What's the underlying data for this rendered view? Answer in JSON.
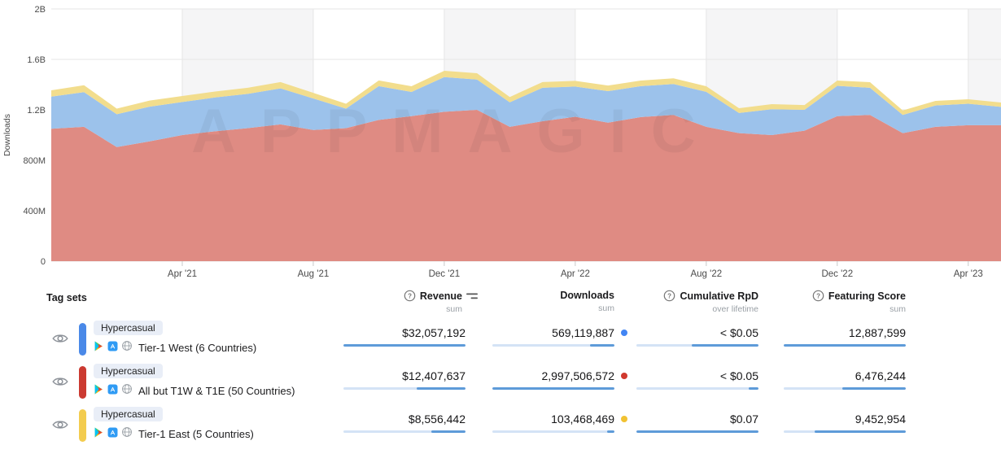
{
  "chart_data": {
    "type": "area",
    "stacked": true,
    "title": "",
    "ylabel": "Downloads",
    "watermark": "APPMAGIC",
    "ylim": [
      0,
      2000
    ],
    "units": "millions",
    "x": [
      "Dec '20",
      "Jan '21",
      "Feb '21",
      "Mar '21",
      "Apr '21",
      "May '21",
      "Jun '21",
      "Jul '21",
      "Aug '21",
      "Sep '21",
      "Oct '21",
      "Nov '21",
      "Dec '21",
      "Jan '22",
      "Feb '22",
      "Mar '22",
      "Apr '22",
      "May '22",
      "Jun '22",
      "Jul '22",
      "Aug '22",
      "Sep '22",
      "Oct '22",
      "Nov '22",
      "Dec '22",
      "Jan '23",
      "Feb '23",
      "Mar '23",
      "Apr '23",
      "May '23"
    ],
    "series": [
      {
        "name": "All but T1W & T1E (50 Countries)",
        "color": "#df8b83",
        "values": [
          1050,
          1065,
          905,
          950,
          1000,
          1030,
          1055,
          1085,
          1040,
          1055,
          1120,
          1150,
          1185,
          1200,
          1065,
          1110,
          1145,
          1098,
          1143,
          1160,
          1065,
          1015,
          1000,
          1035,
          1150,
          1160,
          1015,
          1065,
          1078,
          1078
        ]
      },
      {
        "name": "Tier-1 West (6 Countries)",
        "color": "#9cc2eb",
        "values": [
          255,
          275,
          260,
          275,
          262,
          268,
          272,
          285,
          250,
          155,
          268,
          192,
          275,
          240,
          195,
          265,
          240,
          250,
          245,
          245,
          278,
          160,
          205,
          165,
          240,
          215,
          145,
          170,
          170,
          145
        ]
      },
      {
        "name": "Tier-1 East (5 Countries)",
        "color": "#f2dd8d",
        "values": [
          50,
          55,
          45,
          48,
          48,
          47,
          48,
          50,
          45,
          38,
          45,
          45,
          50,
          50,
          42,
          45,
          45,
          45,
          44,
          45,
          44,
          38,
          40,
          38,
          42,
          44,
          35,
          36,
          36,
          35
        ]
      }
    ],
    "yticks": [
      {
        "value": 0,
        "label": "0"
      },
      {
        "value": 400,
        "label": "400M"
      },
      {
        "value": 800,
        "label": "800M"
      },
      {
        "value": 1200,
        "label": "1.2B"
      },
      {
        "value": 1600,
        "label": "1.6B"
      },
      {
        "value": 2000,
        "label": "2B"
      }
    ],
    "xticks": [
      {
        "index": 4,
        "label": "Apr '21"
      },
      {
        "index": 8,
        "label": "Aug '21"
      },
      {
        "index": 12,
        "label": "Dec '21"
      },
      {
        "index": 16,
        "label": "Apr '22"
      },
      {
        "index": 20,
        "label": "Aug '22"
      },
      {
        "index": 24,
        "label": "Dec '22"
      },
      {
        "index": 28,
        "label": "Apr '23"
      }
    ],
    "shaded_bands": [
      [
        4,
        8
      ],
      [
        12,
        16
      ],
      [
        20,
        24
      ],
      [
        28,
        29
      ]
    ],
    "grid": true,
    "band_color": "#f5f5f6",
    "grid_color": "#e6e6e6"
  },
  "icons": {
    "eye": "visibility-toggle",
    "question": "help-circle",
    "sort": "sort-order",
    "google_play": "google-play",
    "app_store": "app-store",
    "globe": "globe-worldwide"
  },
  "table": {
    "tag_sets_label": "Tag sets",
    "columns": {
      "revenue": {
        "label": "Revenue",
        "sub": "sum"
      },
      "downloads": {
        "label": "Downloads",
        "sub": "sum"
      },
      "rpd": {
        "label": "Cumulative RpD",
        "sub": "over lifetime"
      },
      "featuring": {
        "label": "Featuring Score",
        "sub": "sum"
      }
    },
    "rows": [
      {
        "tag": "Hypercasual",
        "label": "Tier-1 West (6 Countries)",
        "color": "#4a89e8",
        "dot": "#4285f4",
        "revenue": {
          "value": "$32,057,192",
          "dark": [
            0,
            100
          ]
        },
        "downloads": {
          "value": "569,119,887",
          "dark": [
            80,
            100
          ]
        },
        "rpd": {
          "value": "< $0.05",
          "dark": [
            45,
            100
          ]
        },
        "featuring": {
          "value": "12,887,599",
          "dark": [
            0,
            100
          ]
        }
      },
      {
        "tag": "Hypercasual",
        "label": "All but T1W & T1E (50 Countries)",
        "color": "#cb3a31",
        "dot": "#d0392e",
        "revenue": {
          "value": "$12,407,637",
          "dark": [
            60,
            100
          ]
        },
        "downloads": {
          "value": "2,997,506,572",
          "dark": [
            0,
            100
          ]
        },
        "rpd": {
          "value": "< $0.05",
          "dark": [
            92,
            100
          ]
        },
        "featuring": {
          "value": "6,476,244",
          "dark": [
            48,
            100
          ]
        }
      },
      {
        "tag": "Hypercasual",
        "label": "Tier-1 East (5 Countries)",
        "color": "#f3cc4f",
        "dot": "#f1c232",
        "revenue": {
          "value": "$8,556,442",
          "dark": [
            72,
            100
          ]
        },
        "downloads": {
          "value": "103,468,469",
          "dark": [
            94,
            100
          ]
        },
        "rpd": {
          "value": "$0.07",
          "dark": [
            0,
            100
          ]
        },
        "featuring": {
          "value": "9,452,954",
          "dark": [
            25,
            100
          ]
        }
      }
    ]
  }
}
